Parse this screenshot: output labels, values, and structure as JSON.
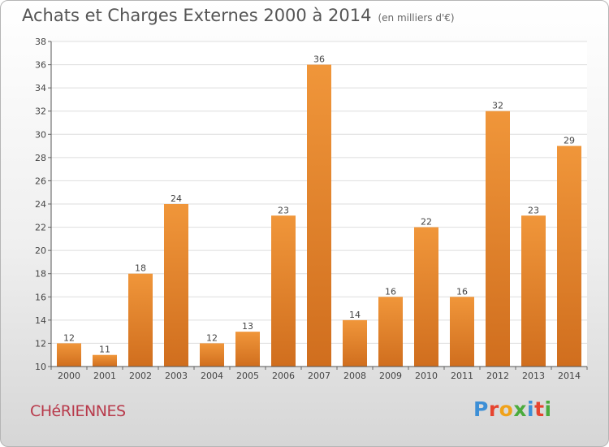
{
  "header": {
    "title": "Achats et Charges Externes 2000 à 2014",
    "unit": "(en milliers d'€)"
  },
  "commune": "CHéRIENNES",
  "logo": {
    "letters": [
      {
        "char": "P",
        "color": "#3d8fd6"
      },
      {
        "char": "r",
        "color": "#e6442f"
      },
      {
        "char": "o",
        "color": "#f0a21a"
      },
      {
        "char": "x",
        "color": "#4aab3c"
      },
      {
        "char": "i",
        "color": "#3d8fd6"
      },
      {
        "char": "t",
        "color": "#e6442f"
      },
      {
        "char": "i",
        "color": "#4aab3c"
      }
    ]
  },
  "chart_data": {
    "type": "bar",
    "title": "Achats et Charges Externes 2000 à 2014",
    "categories": [
      "2000",
      "2001",
      "2002",
      "2003",
      "2004",
      "2005",
      "2006",
      "2007",
      "2008",
      "2009",
      "2010",
      "2011",
      "2012",
      "2013",
      "2014"
    ],
    "values": [
      12,
      11,
      18,
      24,
      12,
      13,
      23,
      36,
      14,
      16,
      22,
      16,
      32,
      23,
      29
    ],
    "ylim": [
      10,
      38
    ],
    "yticks": [
      10,
      12,
      14,
      16,
      18,
      20,
      22,
      24,
      26,
      28,
      30,
      32,
      34,
      36,
      38
    ],
    "grid": true,
    "bar_color": "#f0963a",
    "bar_color_dark": "#d06e1e"
  }
}
